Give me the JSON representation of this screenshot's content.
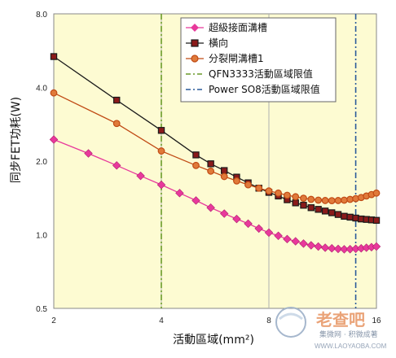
{
  "chart_data": {
    "type": "line",
    "x_scale": "log",
    "y_scale": "log",
    "xlim": [
      2,
      16
    ],
    "ylim": [
      0.5,
      8.0
    ],
    "xticks": [
      2,
      4,
      8,
      16
    ],
    "yticks": [
      0.5,
      1.0,
      2.0,
      4.0,
      8.0
    ],
    "xtick_labels": [
      "2",
      "4",
      "8",
      "16"
    ],
    "ytick_labels": [
      "0.5",
      "1.0",
      "2.0",
      "4.0",
      "8.0"
    ],
    "xlabel": "活動區域(mm²)",
    "ylabel": "同步FET功耗(W)",
    "grid": "vertical",
    "legend_position": "top-right",
    "series": [
      {
        "name": "超級接面溝槽",
        "color": "#e8399b",
        "marker": "diamond",
        "x": [
          2,
          2.5,
          3,
          3.5,
          4,
          4.5,
          5,
          5.5,
          6,
          6.5,
          7,
          7.5,
          8,
          8.5,
          9,
          9.5,
          10,
          10.5,
          11,
          11.5,
          12,
          12.5,
          13,
          13.5,
          14,
          14.5,
          15,
          15.5,
          16
        ],
        "values": [
          2.45,
          2.15,
          1.92,
          1.74,
          1.6,
          1.48,
          1.38,
          1.29,
          1.22,
          1.16,
          1.11,
          1.06,
          1.02,
          0.99,
          0.96,
          0.94,
          0.92,
          0.905,
          0.895,
          0.885,
          0.88,
          0.875,
          0.872,
          0.873,
          0.876,
          0.88,
          0.885,
          0.89,
          0.895
        ]
      },
      {
        "name": "橫向",
        "color": "#1a1a1a",
        "marker": "square",
        "x": [
          2,
          3,
          4,
          5,
          5.5,
          6,
          6.5,
          7,
          7.5,
          8,
          8.5,
          9,
          9.5,
          10,
          10.5,
          11,
          11.5,
          12,
          12.5,
          13,
          13.5,
          14,
          14.5,
          15,
          15.5,
          16
        ],
        "values": [
          5.35,
          3.55,
          2.67,
          2.12,
          1.95,
          1.83,
          1.72,
          1.63,
          1.55,
          1.49,
          1.44,
          1.39,
          1.35,
          1.32,
          1.29,
          1.27,
          1.25,
          1.23,
          1.21,
          1.19,
          1.18,
          1.17,
          1.16,
          1.155,
          1.15,
          1.145
        ]
      },
      {
        "name": "分裂閘溝槽1",
        "color": "#c04a14",
        "marker": "circle",
        "x": [
          2,
          3,
          4,
          5,
          5.5,
          6,
          6.5,
          7,
          7.5,
          8,
          8.5,
          9,
          9.5,
          10,
          10.5,
          11,
          11.5,
          12,
          12.5,
          13,
          13.5,
          14,
          14.5,
          15,
          15.5,
          16
        ],
        "values": [
          3.8,
          2.85,
          2.2,
          1.92,
          1.82,
          1.73,
          1.66,
          1.6,
          1.55,
          1.51,
          1.48,
          1.45,
          1.43,
          1.41,
          1.395,
          1.385,
          1.38,
          1.378,
          1.38,
          1.385,
          1.395,
          1.405,
          1.42,
          1.44,
          1.46,
          1.48
        ]
      }
    ],
    "reference_lines": [
      {
        "name": "QFN3333活動區域限值",
        "x": 4,
        "color": "#6a9a2a",
        "style": "dash-dot"
      },
      {
        "name": "Power SO8活動區域限值",
        "x": 14,
        "color": "#2a5a9a",
        "style": "dash-dot"
      }
    ]
  },
  "colors": {
    "plot_background": "#fdfbd2",
    "border": "#888888",
    "grid": "#b0b0b0"
  },
  "watermark": {
    "brand": "老查吧",
    "tagline": "集微网 · 积微成著",
    "url": "WWW.LAOYAOBA.COM"
  }
}
